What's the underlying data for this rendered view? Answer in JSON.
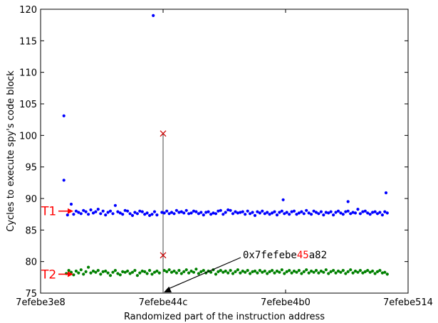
{
  "chart_data": {
    "type": "scatter",
    "title": "",
    "xlabel": "Randomized part of the instruction address",
    "ylabel": "Cycles to execute spy's code block",
    "ylim": [
      75,
      120
    ],
    "x_tick_labels": [
      "7efebe3e8",
      "7efebe44c",
      "7efebe4b0",
      "7efebe514"
    ],
    "y_ticks": [
      75,
      80,
      85,
      90,
      95,
      100,
      105,
      110,
      115,
      120
    ],
    "grid": false,
    "x_unit_note": "x values are offsets from 0x7efebe3e8 in tick units (1 tick = 0x64)",
    "series": [
      {
        "name": "T1",
        "color": "#0000ff",
        "points": [
          [
            0.19,
            92.9
          ],
          [
            0.19,
            103.1
          ],
          [
            0.22,
            87.4
          ],
          [
            0.24,
            88.0
          ],
          [
            0.25,
            89.1
          ],
          [
            0.27,
            87.5
          ],
          [
            0.29,
            88.0
          ],
          [
            0.31,
            87.8
          ],
          [
            0.33,
            87.6
          ],
          [
            0.35,
            88.1
          ],
          [
            0.37,
            87.9
          ],
          [
            0.39,
            87.5
          ],
          [
            0.41,
            88.2
          ],
          [
            0.43,
            87.7
          ],
          [
            0.45,
            87.9
          ],
          [
            0.47,
            88.3
          ],
          [
            0.49,
            87.6
          ],
          [
            0.51,
            88.0
          ],
          [
            0.53,
            87.4
          ],
          [
            0.55,
            87.8
          ],
          [
            0.57,
            88.0
          ],
          [
            0.59,
            87.6
          ],
          [
            0.61,
            88.9
          ],
          [
            0.63,
            87.9
          ],
          [
            0.65,
            87.7
          ],
          [
            0.67,
            87.5
          ],
          [
            0.69,
            88.1
          ],
          [
            0.71,
            88.0
          ],
          [
            0.73,
            87.6
          ],
          [
            0.75,
            87.3
          ],
          [
            0.77,
            87.8
          ],
          [
            0.79,
            87.6
          ],
          [
            0.81,
            88.0
          ],
          [
            0.83,
            87.9
          ],
          [
            0.85,
            87.5
          ],
          [
            0.87,
            87.7
          ],
          [
            0.89,
            87.3
          ],
          [
            0.91,
            87.5
          ],
          [
            0.93,
            87.9
          ],
          [
            0.95,
            87.4
          ],
          [
            0.99,
            87.8
          ],
          [
            1.01,
            87.7
          ],
          [
            1.03,
            88.0
          ],
          [
            1.05,
            87.6
          ],
          [
            1.07,
            87.8
          ],
          [
            1.09,
            87.6
          ],
          [
            1.11,
            88.1
          ],
          [
            1.13,
            87.8
          ],
          [
            1.15,
            87.9
          ],
          [
            1.17,
            87.7
          ],
          [
            1.19,
            88.1
          ],
          [
            1.21,
            87.6
          ],
          [
            1.23,
            87.7
          ],
          [
            1.25,
            88.0
          ],
          [
            1.27,
            87.9
          ],
          [
            1.29,
            87.6
          ],
          [
            1.31,
            87.8
          ],
          [
            1.33,
            87.4
          ],
          [
            1.35,
            87.8
          ],
          [
            1.37,
            87.9
          ],
          [
            1.39,
            87.5
          ],
          [
            1.41,
            87.7
          ],
          [
            1.43,
            87.6
          ],
          [
            1.45,
            88.0
          ],
          [
            1.47,
            88.1
          ],
          [
            1.49,
            87.5
          ],
          [
            1.51,
            87.8
          ],
          [
            1.53,
            88.2
          ],
          [
            1.55,
            88.1
          ],
          [
            1.57,
            87.6
          ],
          [
            1.59,
            87.9
          ],
          [
            1.61,
            87.7
          ],
          [
            1.63,
            87.8
          ],
          [
            1.65,
            87.9
          ],
          [
            1.67,
            87.5
          ],
          [
            1.69,
            88.0
          ],
          [
            1.71,
            87.6
          ],
          [
            1.73,
            87.8
          ],
          [
            1.75,
            87.3
          ],
          [
            1.77,
            87.9
          ],
          [
            1.79,
            87.7
          ],
          [
            1.81,
            88.0
          ],
          [
            1.83,
            87.6
          ],
          [
            1.85,
            87.8
          ],
          [
            1.87,
            87.5
          ],
          [
            1.89,
            87.7
          ],
          [
            1.91,
            87.9
          ],
          [
            1.93,
            87.4
          ],
          [
            1.95,
            87.8
          ],
          [
            1.97,
            88.0
          ],
          [
            1.99,
            87.6
          ],
          [
            2.01,
            87.8
          ],
          [
            2.03,
            87.5
          ],
          [
            2.05,
            87.9
          ],
          [
            2.07,
            88.0
          ],
          [
            2.09,
            87.5
          ],
          [
            2.11,
            87.7
          ],
          [
            2.13,
            87.9
          ],
          [
            2.15,
            87.6
          ],
          [
            2.17,
            88.1
          ],
          [
            2.19,
            87.7
          ],
          [
            2.21,
            87.5
          ],
          [
            2.23,
            88.0
          ],
          [
            2.25,
            87.8
          ],
          [
            2.27,
            87.6
          ],
          [
            2.29,
            87.9
          ],
          [
            2.31,
            87.4
          ],
          [
            2.33,
            87.8
          ],
          [
            2.35,
            87.7
          ],
          [
            2.37,
            87.9
          ],
          [
            2.39,
            87.4
          ],
          [
            2.41,
            87.8
          ],
          [
            2.43,
            88.0
          ],
          [
            2.45,
            87.7
          ],
          [
            2.47,
            87.5
          ],
          [
            2.49,
            87.9
          ],
          [
            2.51,
            88.0
          ],
          [
            2.53,
            87.6
          ],
          [
            2.55,
            87.8
          ],
          [
            2.57,
            87.7
          ],
          [
            2.59,
            88.3
          ],
          [
            2.61,
            87.6
          ],
          [
            2.63,
            87.9
          ],
          [
            2.65,
            88.0
          ],
          [
            2.67,
            87.7
          ],
          [
            2.69,
            87.5
          ],
          [
            2.71,
            87.8
          ],
          [
            0.92,
            119.0
          ],
          [
            1.98,
            89.8
          ],
          [
            2.51,
            89.5
          ],
          [
            2.82,
            90.9
          ],
          [
            2.73,
            87.9
          ],
          [
            2.75,
            87.6
          ],
          [
            2.77,
            87.8
          ],
          [
            2.79,
            87.4
          ],
          [
            2.81,
            87.9
          ],
          [
            2.83,
            87.7
          ]
        ]
      },
      {
        "name": "T2",
        "color": "#008000",
        "points": [
          [
            0.21,
            78.1
          ],
          [
            0.23,
            78.6
          ],
          [
            0.25,
            78.3
          ],
          [
            0.27,
            77.9
          ],
          [
            0.29,
            78.5
          ],
          [
            0.31,
            78.2
          ],
          [
            0.33,
            78.7
          ],
          [
            0.35,
            78.0
          ],
          [
            0.37,
            78.4
          ],
          [
            0.39,
            79.1
          ],
          [
            0.41,
            78.2
          ],
          [
            0.43,
            78.5
          ],
          [
            0.45,
            78.3
          ],
          [
            0.47,
            78.6
          ],
          [
            0.49,
            78.0
          ],
          [
            0.51,
            78.4
          ],
          [
            0.53,
            78.5
          ],
          [
            0.55,
            78.2
          ],
          [
            0.57,
            77.8
          ],
          [
            0.59,
            78.3
          ],
          [
            0.61,
            78.6
          ],
          [
            0.63,
            78.1
          ],
          [
            0.65,
            77.9
          ],
          [
            0.67,
            78.4
          ],
          [
            0.69,
            78.3
          ],
          [
            0.71,
            78.5
          ],
          [
            0.73,
            78.1
          ],
          [
            0.75,
            78.3
          ],
          [
            0.77,
            78.6
          ],
          [
            0.79,
            77.8
          ],
          [
            0.81,
            78.2
          ],
          [
            0.83,
            78.5
          ],
          [
            0.85,
            78.4
          ],
          [
            0.87,
            78.1
          ],
          [
            0.89,
            78.6
          ],
          [
            0.91,
            78.0
          ],
          [
            0.93,
            78.3
          ],
          [
            0.95,
            78.5
          ],
          [
            0.97,
            78.2
          ],
          [
            1.01,
            78.6
          ],
          [
            1.03,
            78.4
          ],
          [
            1.05,
            78.7
          ],
          [
            1.07,
            78.3
          ],
          [
            1.09,
            78.5
          ],
          [
            1.11,
            78.2
          ],
          [
            1.13,
            78.6
          ],
          [
            1.15,
            78.1
          ],
          [
            1.17,
            78.4
          ],
          [
            1.19,
            78.7
          ],
          [
            1.21,
            78.2
          ],
          [
            1.23,
            78.5
          ],
          [
            1.25,
            78.3
          ],
          [
            1.27,
            78.8
          ],
          [
            1.29,
            78.1
          ],
          [
            1.31,
            78.4
          ],
          [
            1.33,
            78.6
          ],
          [
            1.35,
            78.2
          ],
          [
            1.37,
            78.5
          ],
          [
            1.39,
            78.3
          ],
          [
            1.41,
            78.7
          ],
          [
            1.43,
            78.0
          ],
          [
            1.45,
            78.4
          ],
          [
            1.47,
            78.6
          ],
          [
            1.49,
            78.3
          ],
          [
            1.51,
            78.5
          ],
          [
            1.53,
            78.2
          ],
          [
            1.55,
            78.6
          ],
          [
            1.57,
            78.1
          ],
          [
            1.59,
            78.4
          ],
          [
            1.61,
            78.7
          ],
          [
            1.63,
            78.2
          ],
          [
            1.65,
            78.5
          ],
          [
            1.67,
            78.3
          ],
          [
            1.69,
            78.6
          ],
          [
            1.71,
            78.1
          ],
          [
            1.73,
            78.4
          ],
          [
            1.75,
            78.5
          ],
          [
            1.77,
            78.2
          ],
          [
            1.79,
            78.6
          ],
          [
            1.81,
            78.3
          ],
          [
            1.83,
            78.5
          ],
          [
            1.85,
            78.1
          ],
          [
            1.87,
            78.4
          ],
          [
            1.89,
            78.6
          ],
          [
            1.91,
            78.2
          ],
          [
            1.93,
            78.5
          ],
          [
            1.95,
            78.3
          ],
          [
            1.97,
            78.7
          ],
          [
            1.99,
            78.1
          ],
          [
            2.01,
            78.4
          ],
          [
            2.03,
            78.6
          ],
          [
            2.05,
            78.2
          ],
          [
            2.07,
            78.5
          ],
          [
            2.09,
            78.3
          ],
          [
            2.11,
            78.6
          ],
          [
            2.13,
            78.1
          ],
          [
            2.15,
            78.4
          ],
          [
            2.17,
            78.7
          ],
          [
            2.19,
            78.2
          ],
          [
            2.21,
            78.5
          ],
          [
            2.23,
            78.3
          ],
          [
            2.25,
            78.6
          ],
          [
            2.27,
            78.2
          ],
          [
            2.29,
            78.5
          ],
          [
            2.31,
            78.3
          ],
          [
            2.33,
            78.7
          ],
          [
            2.35,
            78.1
          ],
          [
            2.37,
            78.4
          ],
          [
            2.39,
            78.6
          ],
          [
            2.41,
            78.2
          ],
          [
            2.43,
            78.5
          ],
          [
            2.45,
            78.3
          ],
          [
            2.47,
            78.6
          ],
          [
            2.49,
            78.1
          ],
          [
            2.51,
            78.4
          ],
          [
            2.53,
            78.7
          ],
          [
            2.55,
            78.2
          ],
          [
            2.57,
            78.5
          ],
          [
            2.59,
            78.3
          ],
          [
            2.61,
            78.6
          ],
          [
            2.63,
            78.2
          ],
          [
            2.65,
            78.4
          ],
          [
            2.67,
            78.6
          ],
          [
            2.69,
            78.3
          ],
          [
            2.71,
            78.5
          ],
          [
            2.73,
            78.1
          ],
          [
            2.75,
            78.4
          ],
          [
            2.77,
            78.6
          ],
          [
            2.79,
            78.2
          ],
          [
            2.81,
            78.3
          ],
          [
            2.83,
            78.0
          ]
        ]
      }
    ],
    "highlight": {
      "x": 1.0,
      "y_top": 100.3,
      "y_mid": 81.0,
      "marker_color": "#cc0000",
      "line_color": "#444444"
    },
    "annotation": {
      "text_prefix": "0x7fefebe",
      "text_highlight": "45",
      "text_suffix": "a82",
      "highlight_color": "#ff0000",
      "arrow_target": [
        1.0,
        75
      ]
    },
    "labels": [
      {
        "text": "T1",
        "y": 88.0,
        "color": "#ff0000"
      },
      {
        "text": "T2",
        "y": 78.0,
        "color": "#ff0000"
      }
    ]
  }
}
